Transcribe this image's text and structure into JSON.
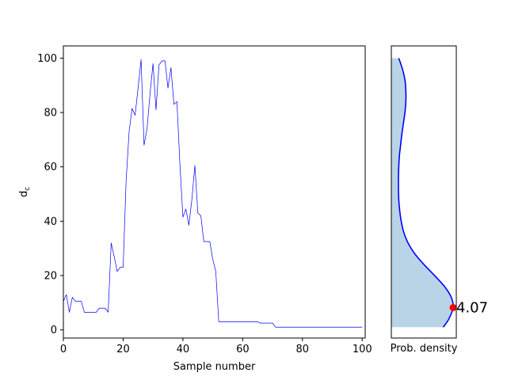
{
  "chart_data": [
    {
      "type": "line",
      "xlabel": "Sample number",
      "ylabel": "d_c",
      "ylabel_main": "d",
      "ylabel_sub": "c",
      "xlim": [
        0,
        101
      ],
      "ylim": [
        -3,
        104.5
      ],
      "xticks": [
        0,
        20,
        40,
        60,
        80,
        100
      ],
      "yticks": [
        0,
        20,
        40,
        60,
        80,
        100
      ],
      "xtick_labels": [
        "0",
        "20",
        "40",
        "60",
        "80",
        "100"
      ],
      "ytick_labels": [
        "0",
        "20",
        "40",
        "60",
        "80",
        "100"
      ],
      "grid": false,
      "series_color": "#0000ff",
      "x": [
        0,
        1,
        2,
        3,
        4,
        5,
        6,
        7,
        8,
        9,
        10,
        11,
        12,
        13,
        14,
        15,
        16,
        17,
        18,
        19,
        20,
        21,
        22,
        23,
        24,
        25,
        26,
        27,
        28,
        29,
        30,
        31,
        32,
        33,
        34,
        35,
        36,
        37,
        38,
        39,
        40,
        41,
        42,
        43,
        44,
        45,
        46,
        47,
        48,
        49,
        50,
        51,
        52,
        53,
        54,
        55,
        56,
        57,
        58,
        59,
        60,
        61,
        62,
        63,
        64,
        65,
        66,
        67,
        68,
        69,
        70,
        71,
        72,
        73,
        74,
        75,
        76,
        77,
        78,
        79,
        80,
        81,
        82,
        83,
        84,
        85,
        86,
        87,
        88,
        89,
        90,
        91,
        92,
        93,
        94,
        95,
        96,
        97,
        98,
        99,
        100
      ],
      "y": [
        10.5,
        13,
        6.5,
        12,
        10.5,
        10.5,
        10.5,
        6.5,
        6.5,
        6.5,
        6.5,
        6.5,
        8,
        8,
        8,
        6.5,
        32,
        27,
        21.5,
        23,
        23,
        55,
        73,
        81.5,
        79,
        89,
        99.5,
        68,
        74,
        87,
        98,
        81,
        97.5,
        99,
        99,
        89,
        96.5,
        83,
        84,
        61,
        41.5,
        44.5,
        38.5,
        48,
        60.5,
        43,
        42,
        32.5,
        32.5,
        32.5,
        26,
        21.5,
        3,
        3,
        3,
        3,
        3,
        3,
        3,
        3,
        3,
        3,
        3,
        3,
        3,
        3,
        2.5,
        2.5,
        2.5,
        2.5,
        2.5,
        1,
        1,
        1,
        1,
        1,
        1,
        1,
        1,
        1,
        1,
        1,
        1,
        1,
        1,
        1,
        1,
        1,
        1,
        1,
        1,
        1,
        1,
        1,
        1,
        1,
        1,
        1,
        1,
        1,
        1
      ]
    },
    {
      "type": "area",
      "xlabel": "Prob. density",
      "ylim": [
        -3,
        104.5
      ],
      "fill_color": "#b9d4e7",
      "line_color": "#0000ff",
      "marker_color": "#ff0000",
      "y": [
        1,
        4,
        8.2,
        12,
        16,
        20,
        24,
        28,
        32,
        36,
        40,
        44,
        48,
        52,
        56,
        60,
        64,
        68,
        72,
        76,
        80,
        84,
        88,
        92,
        96,
        100
      ],
      "density": [
        0.84,
        0.93,
        1.0,
        0.97,
        0.86,
        0.7,
        0.53,
        0.38,
        0.27,
        0.2,
        0.16,
        0.135,
        0.12,
        0.115,
        0.115,
        0.12,
        0.13,
        0.15,
        0.17,
        0.195,
        0.22,
        0.235,
        0.235,
        0.22,
        0.18,
        0.12
      ],
      "density_max": 1.0,
      "mode_y": 8.2,
      "annotation": "4.07"
    }
  ]
}
